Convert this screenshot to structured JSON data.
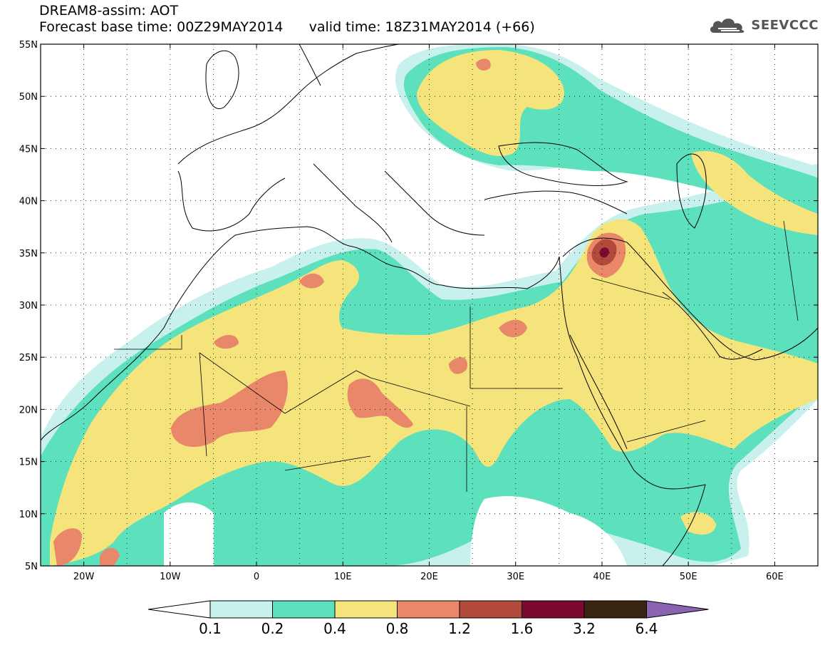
{
  "title": {
    "line1": "DREAM8-assim: AOT",
    "base_time": "Forecast base time: 00Z29MAY2014",
    "valid_time": "valid time: 18Z31MAY2014 (+66)"
  },
  "logo": {
    "text": "SEEVCCC",
    "icon": "cloud-icon",
    "color": "#555555"
  },
  "map": {
    "projection": "lat-lon",
    "lon_range": [
      -25,
      65
    ],
    "lat_range": [
      5,
      55
    ],
    "lat_ticks": [
      "55N",
      "50N",
      "45N",
      "40N",
      "35N",
      "30N",
      "25N",
      "20N",
      "15N",
      "10N",
      "5N"
    ],
    "lon_ticks": [
      "20W",
      "10W",
      "0",
      "10E",
      "20E",
      "30E",
      "40E",
      "50E",
      "60E"
    ],
    "grid": "dotted"
  },
  "colorbar": {
    "labels": [
      "0.1",
      "0.2",
      "0.4",
      "0.8",
      "1.2",
      "1.6",
      "3.2",
      "6.4"
    ],
    "colors": [
      "#c8f0ec",
      "#5de0bc",
      "#f5e37c",
      "#e8876a",
      "#b24a3c",
      "#7a0a2e",
      "#3a2412",
      "#8a64b0"
    ]
  }
}
